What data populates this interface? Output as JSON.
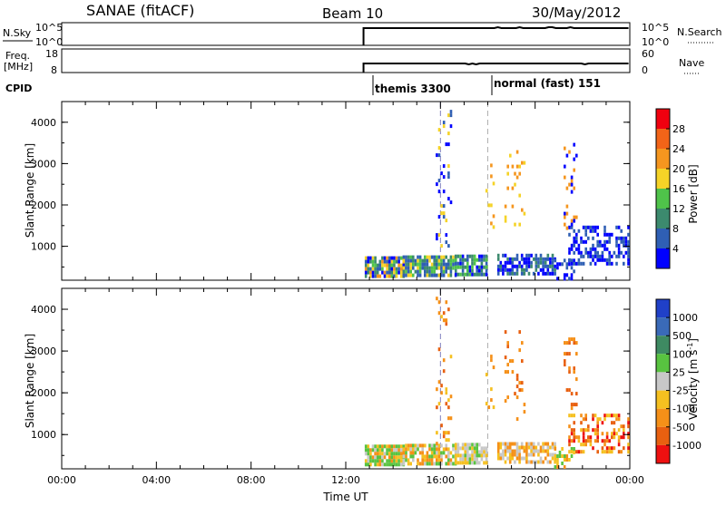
{
  "header": {
    "station": "SANAE (fitACF)",
    "beam": "Beam 10",
    "date": "30/May/2012"
  },
  "panels": {
    "nsky": {
      "label": "N.Sky",
      "left_ticks": [
        "10^5",
        "10^0"
      ],
      "right_label": "N.Search",
      "right_ticks": [
        "10^5",
        "10^0"
      ]
    },
    "freq": {
      "label_line1": "Freq.",
      "label_line2": "[MHz]",
      "left_ticks": [
        "18",
        "8"
      ],
      "right_label": "Nave",
      "right_ticks": [
        "60",
        "0"
      ]
    },
    "cpid": {
      "label": "CPID",
      "modes": [
        {
          "name": "themis 3300",
          "start_hour": 12.75
        },
        {
          "name": "normal (fast) 151",
          "start_hour": 18.0
        }
      ]
    }
  },
  "colorbars": {
    "power": {
      "label": "Power [dB]",
      "ticks": [
        "4",
        "8",
        "12",
        "16",
        "20",
        "24",
        "28"
      ],
      "colors": [
        "#0000ff",
        "#2f5fb4",
        "#3c8a6e",
        "#4fc34a",
        "#f5d327",
        "#f5961f",
        "#f26418",
        "#f0000f"
      ]
    },
    "velocity": {
      "label": "Velocity [m s",
      "label_sup": "-1",
      "label_end": "]",
      "ticks": [
        "1000",
        "500",
        "100",
        "25",
        "-25",
        "-100",
        "-500",
        "-1000"
      ],
      "colors": [
        "#2040c8",
        "#3a6ab8",
        "#3e8a62",
        "#58c340",
        "#c8c8c8",
        "#f5c020",
        "#f59018",
        "#e86010",
        "#ee1010"
      ]
    }
  },
  "chart_data": [
    {
      "type": "heatmap",
      "name": "power",
      "ylabel": "Slant Range [km]",
      "xlim": [
        0,
        24
      ],
      "ylim": [
        180,
        4500
      ],
      "yticks": [
        "1000",
        "2000",
        "3000",
        "4000"
      ],
      "clusters": [
        {
          "x0": 12.8,
          "x1": 14.4,
          "y0": 300,
          "y1": 760,
          "bands": [
            0,
            1,
            2,
            3,
            4,
            5
          ],
          "density": 0.9
        },
        {
          "x0": 14.4,
          "x1": 16.6,
          "y0": 320,
          "y1": 780,
          "bands": [
            1,
            2,
            3,
            4,
            1
          ],
          "density": 0.85
        },
        {
          "x0": 16.6,
          "x1": 17.9,
          "y0": 330,
          "y1": 800,
          "bands": [
            0,
            1,
            2,
            3
          ],
          "density": 0.8
        },
        {
          "x0": 18.4,
          "x1": 20.8,
          "y0": 380,
          "y1": 820,
          "bands": [
            0,
            1,
            2
          ],
          "density": 0.7
        },
        {
          "x0": 20.8,
          "x1": 21.6,
          "y0": 220,
          "y1": 700,
          "bands": [
            0,
            1
          ],
          "density": 0.4
        },
        {
          "x0": 21.4,
          "x1": 23.9,
          "y0": 600,
          "y1": 1500,
          "bands": [
            0,
            1
          ],
          "density": 0.45
        },
        {
          "x0": 15.8,
          "x1": 16.4,
          "y0": 800,
          "y1": 4300,
          "bands": [
            0,
            1,
            4
          ],
          "density": 0.12
        },
        {
          "x0": 17.9,
          "x1": 18.2,
          "y0": 1400,
          "y1": 3000,
          "bands": [
            4,
            5
          ],
          "density": 0.12
        },
        {
          "x0": 18.7,
          "x1": 19.5,
          "y0": 1400,
          "y1": 3500,
          "bands": [
            4,
            5
          ],
          "density": 0.1
        },
        {
          "x0": 21.2,
          "x1": 21.7,
          "y0": 1400,
          "y1": 3500,
          "bands": [
            0,
            5
          ],
          "density": 0.15
        }
      ]
    },
    {
      "type": "heatmap",
      "name": "velocity",
      "ylabel": "Slant Range [km]",
      "xlabel": "Time UT",
      "xlim": [
        0,
        24
      ],
      "ylim": [
        180,
        4500
      ],
      "xticks": [
        "00:00",
        "04:00",
        "08:00",
        "12:00",
        "16:00",
        "20:00",
        "00:00"
      ],
      "yticks": [
        "1000",
        "2000",
        "3000",
        "4000"
      ],
      "clusters": [
        {
          "x0": 12.8,
          "x1": 14.4,
          "y0": 300,
          "y1": 760,
          "bands": [
            4,
            5,
            6,
            3
          ],
          "density": 0.9
        },
        {
          "x0": 14.4,
          "x1": 16.6,
          "y0": 320,
          "y1": 780,
          "bands": [
            4,
            5,
            6,
            3
          ],
          "density": 0.85
        },
        {
          "x0": 16.6,
          "x1": 17.9,
          "y0": 330,
          "y1": 800,
          "bands": [
            3,
            4,
            5
          ],
          "density": 0.8
        },
        {
          "x0": 18.4,
          "x1": 20.8,
          "y0": 380,
          "y1": 820,
          "bands": [
            4,
            5,
            6
          ],
          "density": 0.7
        },
        {
          "x0": 20.8,
          "x1": 21.6,
          "y0": 220,
          "y1": 700,
          "bands": [
            3,
            5,
            6
          ],
          "density": 0.4
        },
        {
          "x0": 21.4,
          "x1": 23.9,
          "y0": 600,
          "y1": 1500,
          "bands": [
            6,
            7,
            8,
            5
          ],
          "density": 0.45
        },
        {
          "x0": 15.8,
          "x1": 16.4,
          "y0": 800,
          "y1": 4300,
          "bands": [
            5,
            6,
            7
          ],
          "density": 0.12
        },
        {
          "x0": 17.9,
          "x1": 18.2,
          "y0": 1400,
          "y1": 3000,
          "bands": [
            5,
            6
          ],
          "density": 0.12
        },
        {
          "x0": 18.7,
          "x1": 19.5,
          "y0": 1400,
          "y1": 3500,
          "bands": [
            6,
            7
          ],
          "density": 0.1
        },
        {
          "x0": 21.2,
          "x1": 21.7,
          "y0": 1400,
          "y1": 3500,
          "bands": [
            6,
            7
          ],
          "density": 0.15
        }
      ]
    }
  ]
}
